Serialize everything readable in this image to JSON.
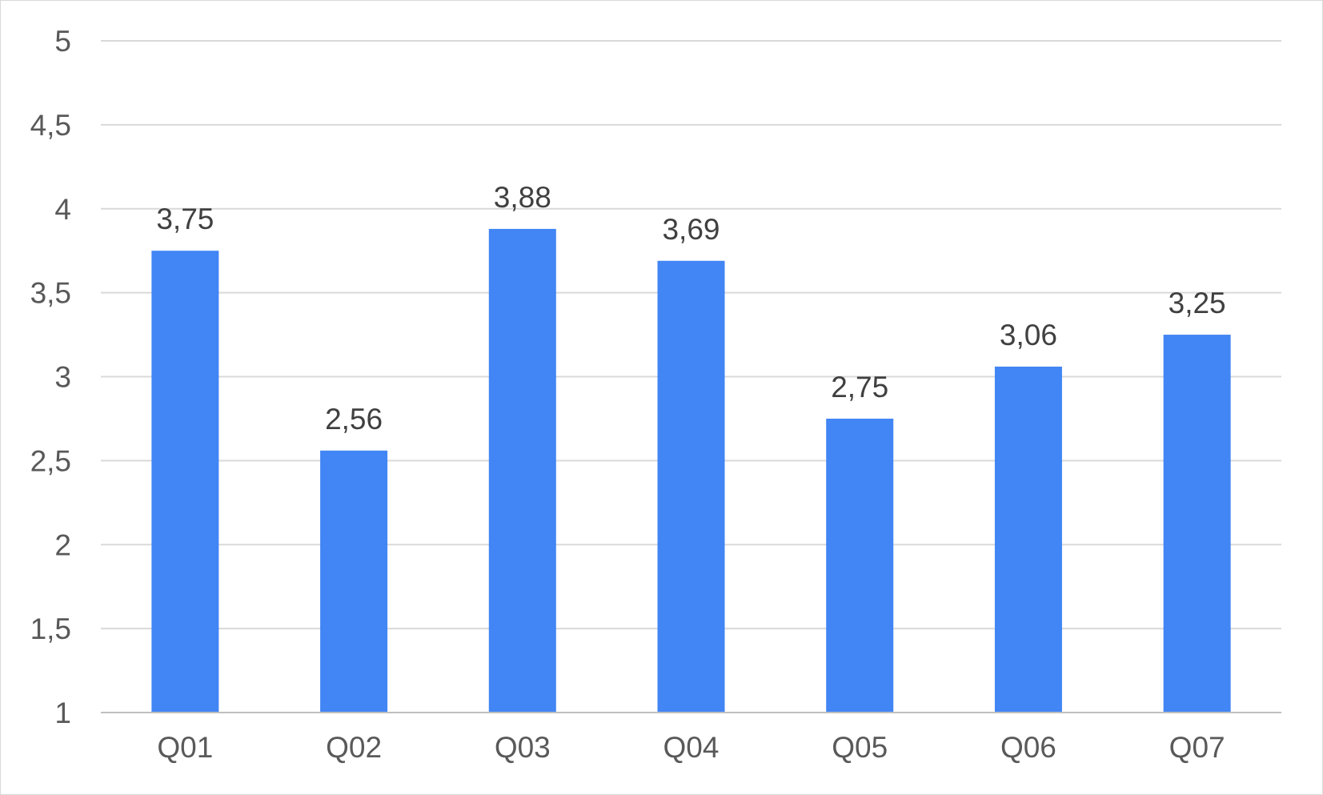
{
  "chart_data": {
    "type": "bar",
    "title": "",
    "xlabel": "",
    "ylabel": "",
    "categories": [
      "Q01",
      "Q02",
      "Q03",
      "Q04",
      "Q05",
      "Q06",
      "Q07"
    ],
    "values": [
      3.75,
      2.56,
      3.88,
      3.69,
      2.75,
      3.06,
      3.25
    ],
    "value_labels": [
      "3,75",
      "2,56",
      "3,88",
      "3,69",
      "2,75",
      "3,06",
      "3,25"
    ],
    "ylim": [
      1,
      5
    ],
    "yticks": [
      1,
      1.5,
      2,
      2.5,
      3,
      3.5,
      4,
      4.5,
      5
    ],
    "ytick_labels": [
      "1",
      "1,5",
      "2",
      "2,5",
      "3",
      "3,5",
      "4",
      "4,5",
      "5"
    ],
    "bar_color": "#4285f4",
    "grid": true,
    "legend": "none"
  }
}
